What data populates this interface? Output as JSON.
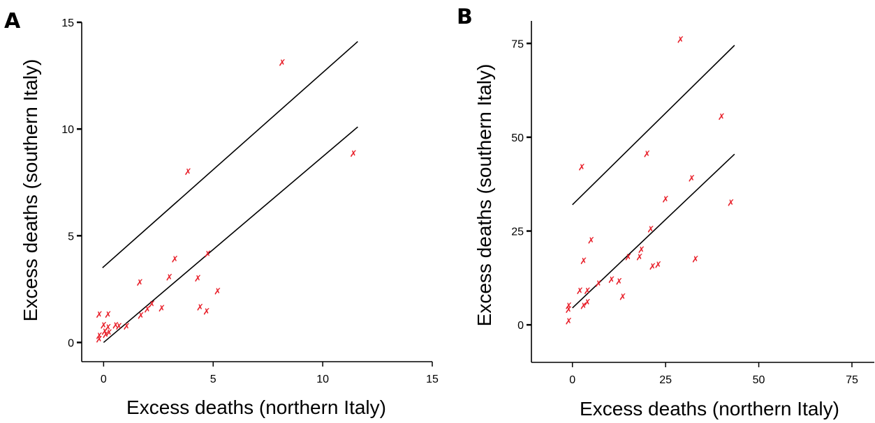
{
  "panels": [
    {
      "letter": "A",
      "xlabel": "Excess deaths (northern Italy)",
      "ylabel": "Excess deaths (southern Italy)"
    },
    {
      "letter": "B",
      "xlabel": "Excess deaths (northern Italy)",
      "ylabel": "Excess deaths (southern Italy)"
    }
  ],
  "colors": {
    "points": "#e8202a",
    "lines": "#000000",
    "axes": "#000000"
  },
  "chart_data": [
    {
      "type": "scatter",
      "title": "",
      "xlabel": "Excess deaths (northern Italy)",
      "ylabel": "Excess deaths (southern Italy)",
      "xlim": [
        -1,
        15
      ],
      "ylim": [
        -0.9,
        15
      ],
      "xticks": [
        0,
        5,
        10,
        15
      ],
      "yticks": [
        0,
        5,
        10,
        15
      ],
      "grid": false,
      "marker": "x",
      "points": [
        {
          "x": -0.2,
          "y": 1.3
        },
        {
          "x": -0.2,
          "y": 0.3
        },
        {
          "x": -0.2,
          "y": 0.15
        },
        {
          "x": 0.0,
          "y": 0.8
        },
        {
          "x": 0.05,
          "y": 0.5
        },
        {
          "x": 0.1,
          "y": 0.35
        },
        {
          "x": 0.2,
          "y": 1.3
        },
        {
          "x": 0.2,
          "y": 0.7
        },
        {
          "x": 0.25,
          "y": 0.45
        },
        {
          "x": 0.55,
          "y": 0.8
        },
        {
          "x": 0.7,
          "y": 0.75
        },
        {
          "x": 1.05,
          "y": 0.75
        },
        {
          "x": 1.65,
          "y": 2.8
        },
        {
          "x": 1.7,
          "y": 1.25
        },
        {
          "x": 2.0,
          "y": 1.55
        },
        {
          "x": 2.2,
          "y": 1.8
        },
        {
          "x": 2.65,
          "y": 1.6
        },
        {
          "x": 3.0,
          "y": 3.05
        },
        {
          "x": 3.25,
          "y": 3.9
        },
        {
          "x": 3.85,
          "y": 8.0
        },
        {
          "x": 4.3,
          "y": 3.0
        },
        {
          "x": 4.4,
          "y": 1.65
        },
        {
          "x": 4.7,
          "y": 1.45
        },
        {
          "x": 4.75,
          "y": 4.15
        },
        {
          "x": 5.2,
          "y": 2.4
        },
        {
          "x": 8.15,
          "y": 13.1
        },
        {
          "x": 11.4,
          "y": 8.85
        }
      ],
      "lines": [
        {
          "x": [
            -0.05,
            11.6
          ],
          "y": [
            3.5,
            14.1
          ]
        },
        {
          "x": [
            0.0,
            11.6
          ],
          "y": [
            0.0,
            10.1
          ]
        }
      ]
    },
    {
      "type": "scatter",
      "title": "",
      "xlabel": "Excess deaths (northern Italy)",
      "ylabel": "Excess deaths (southern Italy)",
      "xlim": [
        -11,
        81
      ],
      "ylim": [
        -10,
        81
      ],
      "xticks": [
        0,
        25,
        50,
        75
      ],
      "yticks": [
        0,
        25,
        50,
        75
      ],
      "grid": false,
      "marker": "x",
      "points": [
        {
          "x": -1,
          "y": 1
        },
        {
          "x": -1,
          "y": 4
        },
        {
          "x": -1,
          "y": 5
        },
        {
          "x": 2,
          "y": 9
        },
        {
          "x": 2.5,
          "y": 42
        },
        {
          "x": 3,
          "y": 5
        },
        {
          "x": 3,
          "y": 17
        },
        {
          "x": 4,
          "y": 6
        },
        {
          "x": 4,
          "y": 9
        },
        {
          "x": 5,
          "y": 22.5
        },
        {
          "x": 7,
          "y": 11
        },
        {
          "x": 10.5,
          "y": 12
        },
        {
          "x": 12.5,
          "y": 11.5
        },
        {
          "x": 13.5,
          "y": 7.5
        },
        {
          "x": 15,
          "y": 18
        },
        {
          "x": 18,
          "y": 18
        },
        {
          "x": 18.5,
          "y": 20
        },
        {
          "x": 20,
          "y": 45.5
        },
        {
          "x": 21,
          "y": 25.5
        },
        {
          "x": 21.5,
          "y": 15.5
        },
        {
          "x": 23,
          "y": 16
        },
        {
          "x": 25,
          "y": 33.5
        },
        {
          "x": 29,
          "y": 76
        },
        {
          "x": 32,
          "y": 39
        },
        {
          "x": 33,
          "y": 17.5
        },
        {
          "x": 40,
          "y": 55.5
        },
        {
          "x": 42.5,
          "y": 32.5
        }
      ],
      "lines": [
        {
          "x": [
            0,
            43.5
          ],
          "y": [
            32,
            74.5
          ]
        },
        {
          "x": [
            0,
            43.5
          ],
          "y": [
            4.5,
            45.5
          ]
        }
      ]
    }
  ]
}
